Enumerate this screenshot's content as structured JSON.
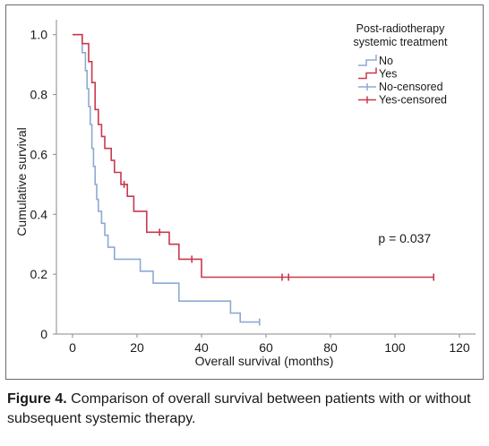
{
  "caption": {
    "label": "Figure 4.",
    "text": " Comparison of overall survival between patients with or without subsequent systemic therapy."
  },
  "chart_data": {
    "type": "line",
    "subtype": "kaplan-meier",
    "xlabel": "Overall survival (months)",
    "ylabel": "Cumulative survival",
    "xlim": [
      -5,
      125
    ],
    "ylim": [
      0,
      1.05
    ],
    "xticks": [
      0,
      20,
      40,
      60,
      80,
      100,
      120
    ],
    "xtick_labels": [
      "0",
      "20",
      "40",
      "60",
      "80",
      "100",
      "120"
    ],
    "yticks": [
      0,
      0.2,
      0.4,
      0.6,
      0.8,
      1.0
    ],
    "ytick_labels": [
      "0",
      "0.2",
      "0.4",
      "0.6",
      "0.8",
      "1.0"
    ],
    "grid": false,
    "legend": {
      "title_line1": "Post-radiotherapy",
      "title_line2": "systemic treatment",
      "placement": "top-right",
      "entries": [
        {
          "label": "No",
          "kind": "step",
          "color": "#8fa9d2"
        },
        {
          "label": "Yes",
          "kind": "step",
          "color": "#c8394e"
        },
        {
          "label": "No-censored",
          "kind": "censor",
          "color": "#8fa9d2"
        },
        {
          "label": "Yes-censored",
          "kind": "censor",
          "color": "#c8394e"
        }
      ]
    },
    "annotation": {
      "text": "p = 0.037",
      "x": 103,
      "y": 0.305
    },
    "series": [
      {
        "name": "No",
        "color": "#8fa9d2",
        "points": [
          [
            0,
            1.0
          ],
          [
            3,
            1.0
          ],
          [
            3,
            0.94
          ],
          [
            4,
            0.94
          ],
          [
            4,
            0.88
          ],
          [
            4.5,
            0.88
          ],
          [
            4.5,
            0.82
          ],
          [
            5,
            0.82
          ],
          [
            5,
            0.76
          ],
          [
            5.5,
            0.76
          ],
          [
            5.5,
            0.7
          ],
          [
            6,
            0.7
          ],
          [
            6,
            0.62
          ],
          [
            6.5,
            0.62
          ],
          [
            6.5,
            0.56
          ],
          [
            7,
            0.56
          ],
          [
            7,
            0.5
          ],
          [
            7.5,
            0.5
          ],
          [
            7.5,
            0.45
          ],
          [
            8,
            0.45
          ],
          [
            8,
            0.41
          ],
          [
            9,
            0.41
          ],
          [
            9,
            0.37
          ],
          [
            10,
            0.37
          ],
          [
            10,
            0.33
          ],
          [
            11,
            0.33
          ],
          [
            11,
            0.29
          ],
          [
            13,
            0.29
          ],
          [
            13,
            0.25
          ],
          [
            21,
            0.25
          ],
          [
            21,
            0.21
          ],
          [
            25,
            0.21
          ],
          [
            25,
            0.17
          ],
          [
            33,
            0.17
          ],
          [
            33,
            0.11
          ],
          [
            49,
            0.11
          ],
          [
            49,
            0.07
          ],
          [
            52,
            0.07
          ],
          [
            52,
            0.04
          ],
          [
            58,
            0.04
          ]
        ],
        "censored": [
          [
            58,
            0.04
          ]
        ]
      },
      {
        "name": "Yes",
        "color": "#c8394e",
        "points": [
          [
            0,
            1.0
          ],
          [
            3,
            1.0
          ],
          [
            3,
            0.97
          ],
          [
            5,
            0.97
          ],
          [
            5,
            0.91
          ],
          [
            6,
            0.91
          ],
          [
            6,
            0.84
          ],
          [
            7,
            0.84
          ],
          [
            7,
            0.75
          ],
          [
            8,
            0.75
          ],
          [
            8,
            0.7
          ],
          [
            9,
            0.7
          ],
          [
            9,
            0.66
          ],
          [
            10,
            0.66
          ],
          [
            10,
            0.62
          ],
          [
            12,
            0.62
          ],
          [
            12,
            0.58
          ],
          [
            13,
            0.58
          ],
          [
            13,
            0.54
          ],
          [
            15,
            0.54
          ],
          [
            15,
            0.5
          ],
          [
            17,
            0.5
          ],
          [
            17,
            0.46
          ],
          [
            19,
            0.46
          ],
          [
            19,
            0.41
          ],
          [
            23,
            0.41
          ],
          [
            23,
            0.34
          ],
          [
            30,
            0.34
          ],
          [
            30,
            0.3
          ],
          [
            33,
            0.3
          ],
          [
            33,
            0.25
          ],
          [
            40,
            0.25
          ],
          [
            40,
            0.19
          ],
          [
            112,
            0.19
          ]
        ],
        "censored": [
          [
            16,
            0.5
          ],
          [
            27,
            0.34
          ],
          [
            37,
            0.25
          ],
          [
            65,
            0.19
          ],
          [
            67,
            0.19
          ],
          [
            112,
            0.19
          ]
        ]
      }
    ]
  }
}
